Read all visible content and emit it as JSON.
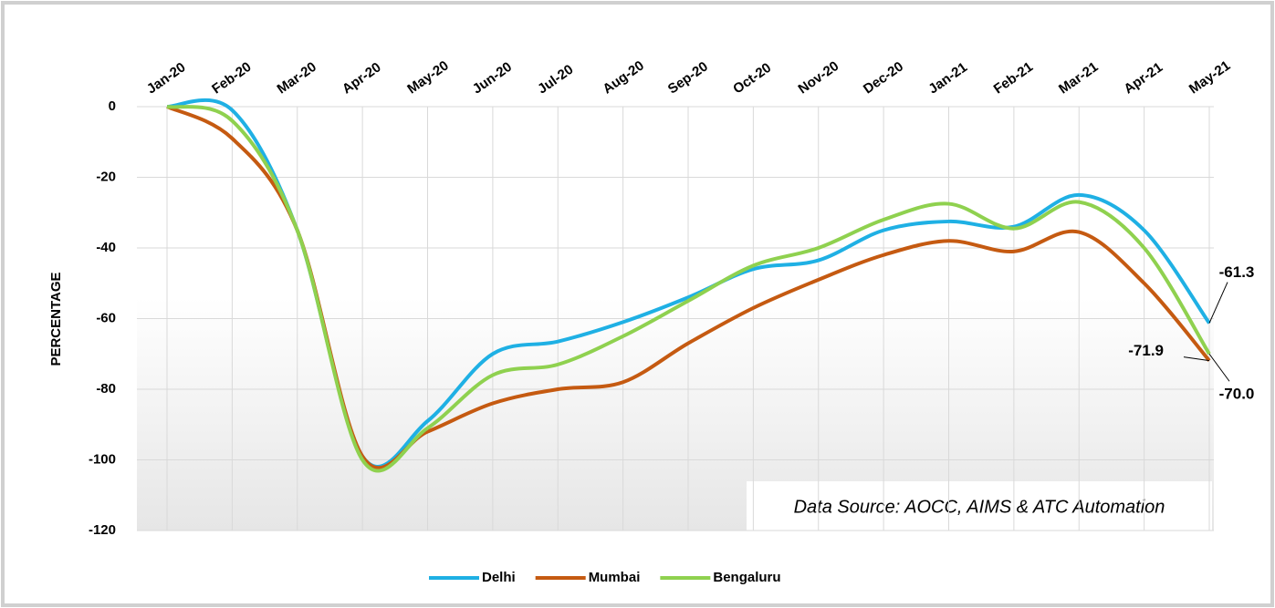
{
  "chart_data": {
    "type": "line",
    "y_axis_label": "PERCENTAGE",
    "annotation": "Data Source: AOCC, AIMS & ATC Automation",
    "categories": [
      "Jan-20",
      "Feb-20",
      "Mar-20",
      "Apr-20",
      "May-20",
      "Jun-20",
      "Jul-20",
      "Aug-20",
      "Sep-20",
      "Oct-20",
      "Nov-20",
      "Dec-20",
      "Jan-21",
      "Feb-21",
      "Mar-21",
      "Apr-21",
      "May-21"
    ],
    "series": [
      {
        "name": "Delhi",
        "color": "#1fb0e4",
        "values": [
          0,
          -1,
          -35,
          -99,
          -89,
          -70,
          -66.5,
          -61,
          -54,
          -46,
          -43.5,
          -35,
          -32.5,
          -34,
          -25,
          -35,
          -61.3
        ],
        "value_labels": [
          null,
          null,
          null,
          null,
          null,
          null,
          null,
          null,
          null,
          null,
          null,
          null,
          null,
          null,
          null,
          null,
          "-61.3"
        ]
      },
      {
        "name": "Mumbai",
        "color": "#c55a11",
        "values": [
          0,
          -9,
          -35,
          -99,
          -92,
          -84,
          -80,
          -78,
          -67,
          -57,
          -49,
          -42,
          -38,
          -41,
          -35.5,
          -50,
          -71.9
        ],
        "value_labels": [
          null,
          null,
          null,
          null,
          null,
          null,
          null,
          null,
          null,
          null,
          null,
          null,
          null,
          null,
          null,
          null,
          "-71.9"
        ]
      },
      {
        "name": "Bengaluru",
        "color": "#8fd14f",
        "values": [
          0,
          -4,
          -35,
          -100,
          -91,
          -76,
          -73,
          -65,
          -55,
          -45,
          -40,
          -32,
          -27.5,
          -34.5,
          -27,
          -40,
          -70
        ],
        "value_labels": [
          null,
          null,
          null,
          null,
          null,
          null,
          null,
          null,
          null,
          null,
          null,
          null,
          null,
          null,
          null,
          null,
          "-70.0"
        ]
      }
    ],
    "ylim": [
      -120,
      0
    ],
    "yticks": [
      0,
      -20,
      -40,
      -60,
      -80,
      -100,
      -120
    ],
    "grid": true,
    "legend": "bottom"
  }
}
